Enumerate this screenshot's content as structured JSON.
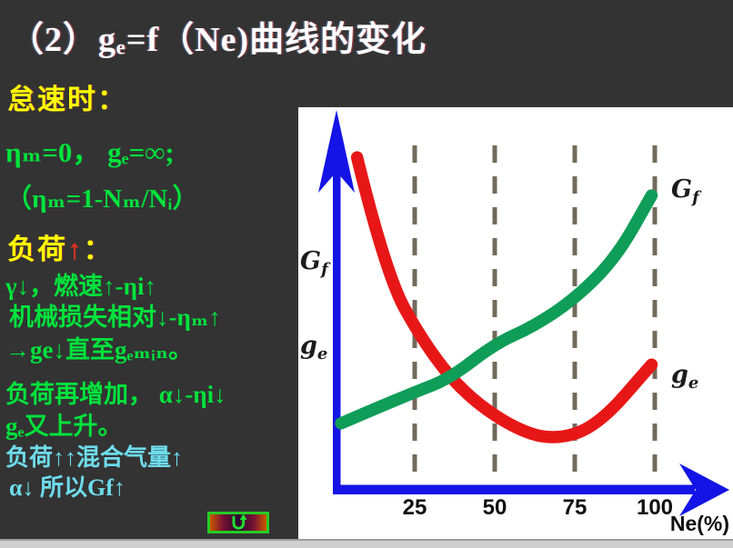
{
  "title": "（2）gₑ=f（Ne)曲线的变化",
  "left_notes": {
    "idle_heading": "怠速时：",
    "idle_line1": "ηₘ=0，  gₑ=∞;",
    "idle_line2": "（ηₘ=1-Nₘ/Nᵢ）",
    "load_heading_prefix": "负荷",
    "load_heading_arrow": "↑",
    "load_heading_suffix": "：",
    "load_line1": "γ↓，燃速↑-ηi↑",
    "load_line2": "机械损失相对↓-ηₘ↑",
    "load_line3": "→ge↓直至gₑₘᵢₙ。",
    "load_line4": "负荷再增加， α↓-ηi↓",
    "load_line5": "gₑ又上升。",
    "note_line1": "负荷↑↑混合气量↑",
    "note_line2": "α↓ 所以Gf↑"
  },
  "colors": {
    "background": "#333333",
    "heading_yellow": "#ffff00",
    "formula_green": "#00e23c",
    "note_cyan": "#6edcec",
    "title_white": "#ffffff"
  },
  "chart_data": {
    "type": "line",
    "title": "",
    "xlabel": "Ne(%)",
    "ylabel": "",
    "x_ticks": [
      "25",
      "50",
      "75",
      "100"
    ],
    "dashed_gridlines_x": [
      25,
      50,
      75,
      100
    ],
    "x_range": [
      0,
      110
    ],
    "grid": "vertical-dashed",
    "grid_color": "#746a5c",
    "axis_color": "#1414e6",
    "plot_background": "#ffffff",
    "legend_position": "on-curve",
    "series": [
      {
        "name": "ge",
        "color": "#e81717",
        "points": [
          [
            7,
            96
          ],
          [
            16,
            62
          ],
          [
            28,
            42
          ],
          [
            40,
            28
          ],
          [
            55,
            18
          ],
          [
            68,
            14
          ],
          [
            82,
            18
          ],
          [
            99,
            36
          ]
        ]
      },
      {
        "name": "Gf",
        "color": "#0f9d58",
        "points": [
          [
            2,
            19
          ],
          [
            12,
            23
          ],
          [
            25,
            28
          ],
          [
            36,
            32
          ],
          [
            50,
            42
          ],
          [
            62,
            47
          ],
          [
            75,
            55
          ],
          [
            88,
            67
          ],
          [
            99,
            85
          ]
        ]
      }
    ],
    "labels": {
      "gf": {
        "main": "G",
        "sub": "f"
      },
      "ge": {
        "main": "g",
        "sub": "e"
      }
    }
  },
  "nav_button": {
    "icon_name": "u-turn-return-icon"
  }
}
